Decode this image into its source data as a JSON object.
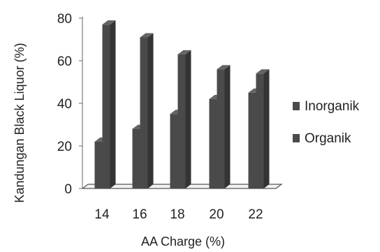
{
  "chart_data": {
    "type": "bar",
    "style": "3d-clustered-column",
    "categories": [
      "14",
      "16",
      "18",
      "20",
      "22"
    ],
    "series": [
      {
        "name": "Inorganik",
        "values": [
          22,
          28,
          35,
          42,
          45
        ],
        "color": "#4a4a4a"
      },
      {
        "name": "Organik",
        "values": [
          77,
          71,
          63,
          56,
          54
        ],
        "color": "#4a4a4a"
      }
    ],
    "xlabel": "AA Charge (%)",
    "ylabel": "Kandungan Black Liquor (%)",
    "ylim": [
      0,
      80
    ],
    "yticks": [
      0,
      20,
      40,
      60,
      80
    ],
    "grid": false,
    "legend": "right"
  }
}
